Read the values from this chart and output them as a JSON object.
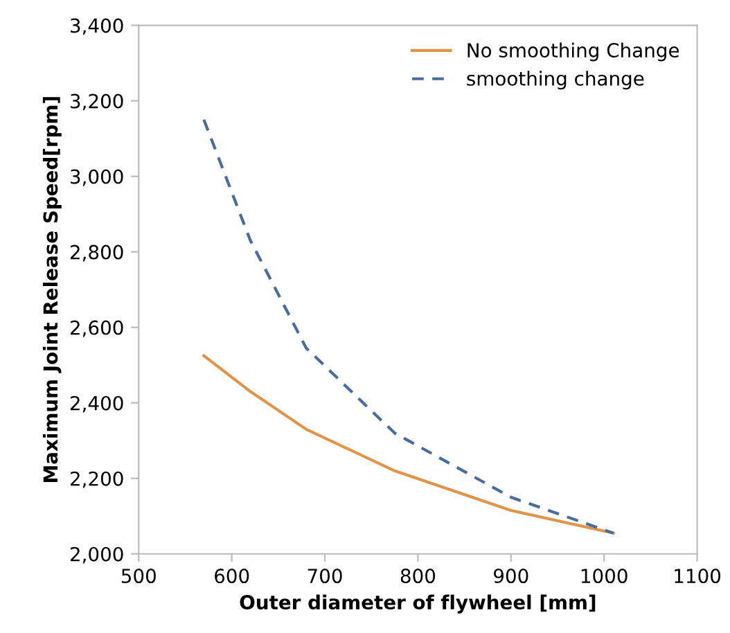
{
  "chart_data": {
    "type": "line",
    "xlabel": "Outer diameter of flywheel [mm]",
    "ylabel": "Maximum Joint Release Speed[rpm]",
    "xlim": [
      500,
      1100
    ],
    "xticks": [
      500,
      600,
      700,
      800,
      900,
      1000,
      1100
    ],
    "ylim": [
      2000,
      3400
    ],
    "yticks": [
      {
        "value": 2000,
        "label": "2,000"
      },
      {
        "value": 2200,
        "label": "2,200"
      },
      {
        "value": 2400,
        "label": "2,400"
      },
      {
        "value": 2600,
        "label": "2,600"
      },
      {
        "value": 2800,
        "label": "2,800"
      },
      {
        "value": 3000,
        "label": "3,000"
      },
      {
        "value": 3200,
        "label": "3,200"
      },
      {
        "value": 3400,
        "label": "3,400"
      }
    ],
    "grid": false,
    "legend": "top right",
    "series": [
      {
        "name": "No smoothing Change",
        "color": "#e0944a",
        "line_style": "solid",
        "x": [
          570,
          620,
          680,
          775,
          900,
          1010
        ],
        "values": [
          2525,
          2430,
          2330,
          2220,
          2115,
          2055
        ]
      },
      {
        "name": "smoothing change",
        "color": "#4a6c9c",
        "line_style": "dashed",
        "x": [
          570,
          620,
          680,
          775,
          900,
          1010
        ],
        "values": [
          3150,
          2830,
          2545,
          2320,
          2150,
          2055
        ]
      }
    ]
  }
}
